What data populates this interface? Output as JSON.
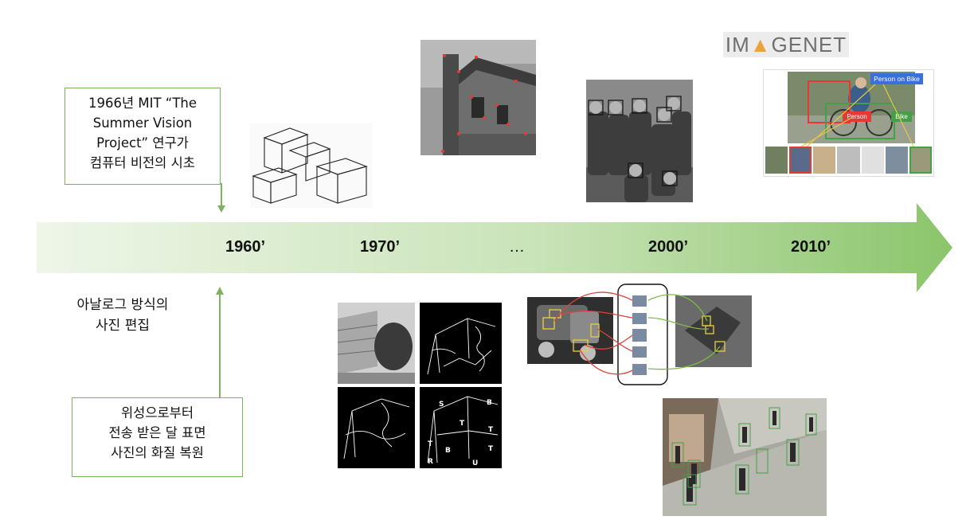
{
  "timeline": {
    "eras": [
      "1960’",
      "1970’",
      "…",
      "2000’",
      "2010’"
    ],
    "arrow_color_start": "#eef6e8",
    "arrow_color_end": "#8bc56b"
  },
  "notes": {
    "mit_project": "1966년 MIT “The\nSummer Vision\nProject” 연구가\n컴퓨터 비전의 시초",
    "analog_editing": "아날로그 방식의\n사진 편집",
    "satellite_restore": "위성으로부터\n전송 받은 달 표면\n사진의 화질 복원"
  },
  "imagenet": {
    "logo_text_left": "IM",
    "logo_text_right": "GENET",
    "labels": {
      "person_on_bike": "Person on Bike",
      "person": "Person",
      "bike": "Bike"
    }
  },
  "edge_detection": {
    "labels": [
      "S",
      "B",
      "T",
      "T",
      "T",
      "B",
      "R",
      "T",
      "U"
    ]
  },
  "colors": {
    "box_border": "#7db35f",
    "connector": "#7db35f",
    "red_box": "#e53935",
    "green_box": "#43a047",
    "blue_label": "#3b6fe0"
  }
}
